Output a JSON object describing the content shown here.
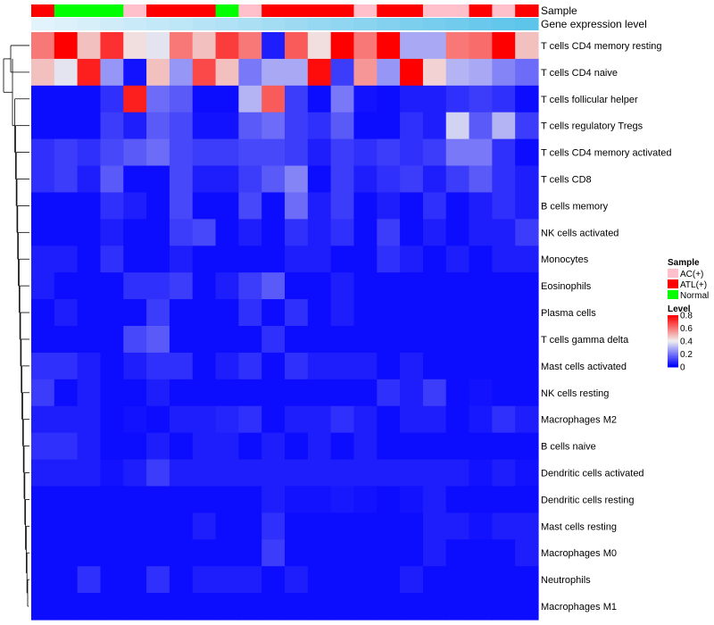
{
  "chart_data": {
    "type": "heatmap",
    "title": "",
    "annotation_rows": [
      {
        "label": "Sample",
        "kind": "categorical",
        "values": [
          "ATL(+)",
          "Normal",
          "Normal",
          "Normal",
          "AC(+)",
          "ATL(+)",
          "ATL(+)",
          "ATL(+)",
          "Normal",
          "AC(+)",
          "ATL(+)",
          "ATL(+)",
          "ATL(+)",
          "ATL(+)",
          "AC(+)",
          "ATL(+)",
          "ATL(+)",
          "AC(+)",
          "AC(+)",
          "ATL(+)",
          "AC(+)",
          "ATL(+)"
        ]
      },
      {
        "label": "Gene expression level",
        "kind": "gradient",
        "colors": [
          "#e3f3fb",
          "#5dc4ea"
        ]
      }
    ],
    "rows": [
      "T cells CD4 memory resting",
      "T cells CD4 naive",
      "T cells follicular helper",
      "T cells regulatory  Tregs",
      "T cells CD4 memory activated",
      "T cells CD8",
      "B cells memory",
      "NK cells activated",
      "Monocytes",
      "Eosinophils",
      "Plasma cells",
      "T cells gamma delta",
      "Mast cells activated",
      "NK cells resting",
      "Macrophages M2",
      "B cells naive",
      "Dendritic cells activated",
      "Dendritic cells resting",
      "Mast cells resting",
      "Macrophages M0",
      "Neutrophils",
      "Macrophages M1"
    ],
    "values": [
      [
        0.6,
        0.8,
        0.48,
        0.72,
        0.43,
        0.38,
        0.6,
        0.48,
        0.7,
        0.6,
        0.05,
        0.65,
        0.43,
        0.8,
        0.6,
        0.8,
        0.28,
        0.28,
        0.6,
        0.62,
        0.8,
        0.48
      ],
      [
        0.48,
        0.38,
        0.75,
        0.25,
        0.03,
        0.48,
        0.25,
        0.68,
        0.48,
        0.2,
        0.28,
        0.28,
        0.78,
        0.1,
        0.55,
        0.25,
        0.8,
        0.45,
        0.3,
        0.28,
        0.22,
        0.18
      ],
      [
        0.02,
        0.02,
        0.02,
        0.08,
        0.75,
        0.18,
        0.15,
        0.02,
        0.02,
        0.3,
        0.65,
        0.1,
        0.02,
        0.2,
        0.03,
        0.02,
        0.05,
        0.05,
        0.08,
        0.1,
        0.08,
        0.02
      ],
      [
        0.02,
        0.02,
        0.02,
        0.1,
        0.05,
        0.15,
        0.12,
        0.03,
        0.03,
        0.15,
        0.18,
        0.1,
        0.08,
        0.15,
        0.02,
        0.02,
        0.08,
        0.05,
        0.35,
        0.15,
        0.3,
        0.1
      ],
      [
        0.08,
        0.1,
        0.08,
        0.12,
        0.15,
        0.18,
        0.12,
        0.1,
        0.1,
        0.12,
        0.12,
        0.1,
        0.05,
        0.1,
        0.08,
        0.1,
        0.08,
        0.1,
        0.2,
        0.2,
        0.08,
        0.02
      ],
      [
        0.08,
        0.1,
        0.05,
        0.15,
        0.02,
        0.02,
        0.12,
        0.05,
        0.05,
        0.1,
        0.15,
        0.22,
        0.02,
        0.1,
        0.05,
        0.08,
        0.1,
        0.05,
        0.1,
        0.15,
        0.08,
        0.05
      ],
      [
        0.02,
        0.02,
        0.02,
        0.08,
        0.05,
        0.02,
        0.12,
        0.02,
        0.02,
        0.12,
        0.02,
        0.18,
        0.05,
        0.1,
        0.02,
        0.05,
        0.02,
        0.08,
        0.02,
        0.05,
        0.08,
        0.05
      ],
      [
        0.02,
        0.02,
        0.02,
        0.05,
        0.02,
        0.02,
        0.1,
        0.12,
        0.02,
        0.05,
        0.02,
        0.08,
        0.05,
        0.08,
        0.02,
        0.1,
        0.02,
        0.05,
        0.02,
        0.05,
        0.05,
        0.1
      ],
      [
        0.05,
        0.05,
        0.02,
        0.08,
        0.02,
        0.02,
        0.05,
        0.02,
        0.02,
        0.02,
        0.02,
        0.05,
        0.05,
        0.02,
        0.02,
        0.08,
        0.05,
        0.02,
        0.05,
        0.02,
        0.05,
        0.05
      ],
      [
        0.05,
        0.02,
        0.02,
        0.02,
        0.08,
        0.08,
        0.1,
        0.02,
        0.05,
        0.1,
        0.15,
        0.02,
        0.02,
        0.05,
        0.02,
        0.02,
        0.02,
        0.02,
        0.02,
        0.02,
        0.02,
        0.02
      ],
      [
        0.02,
        0.05,
        0.02,
        0.02,
        0.02,
        0.1,
        0.02,
        0.02,
        0.02,
        0.08,
        0.02,
        0.08,
        0.02,
        0.05,
        0.02,
        0.02,
        0.02,
        0.02,
        0.02,
        0.02,
        0.02,
        0.02
      ],
      [
        0.02,
        0.02,
        0.02,
        0.02,
        0.12,
        0.15,
        0.02,
        0.02,
        0.02,
        0.02,
        0.08,
        0.02,
        0.02,
        0.02,
        0.02,
        0.02,
        0.02,
        0.02,
        0.02,
        0.02,
        0.02,
        0.02
      ],
      [
        0.08,
        0.08,
        0.05,
        0.02,
        0.05,
        0.08,
        0.08,
        0.02,
        0.05,
        0.08,
        0.02,
        0.08,
        0.05,
        0.05,
        0.05,
        0.02,
        0.05,
        0.02,
        0.02,
        0.02,
        0.02,
        0.02
      ],
      [
        0.1,
        0.02,
        0.05,
        0.02,
        0.02,
        0.05,
        0.02,
        0.02,
        0.02,
        0.02,
        0.02,
        0.02,
        0.02,
        0.02,
        0.02,
        0.08,
        0.05,
        0.1,
        0.02,
        0.03,
        0.02,
        0.02
      ],
      [
        0.05,
        0.05,
        0.05,
        0.02,
        0.03,
        0.02,
        0.05,
        0.05,
        0.06,
        0.08,
        0.02,
        0.05,
        0.05,
        0.08,
        0.05,
        0.02,
        0.05,
        0.05,
        0.02,
        0.04,
        0.08,
        0.05
      ],
      [
        0.08,
        0.08,
        0.05,
        0.02,
        0.02,
        0.05,
        0.02,
        0.05,
        0.05,
        0.02,
        0.05,
        0.02,
        0.05,
        0.02,
        0.05,
        0.02,
        0.02,
        0.02,
        0.02,
        0.02,
        0.02,
        0.02
      ],
      [
        0.05,
        0.05,
        0.05,
        0.03,
        0.05,
        0.1,
        0.05,
        0.05,
        0.05,
        0.05,
        0.05,
        0.05,
        0.05,
        0.05,
        0.05,
        0.05,
        0.05,
        0.05,
        0.05,
        0.03,
        0.05,
        0.03
      ],
      [
        0.02,
        0.02,
        0.02,
        0.02,
        0.02,
        0.02,
        0.02,
        0.02,
        0.02,
        0.02,
        0.05,
        0.03,
        0.03,
        0.04,
        0.03,
        0.02,
        0.03,
        0.05,
        0.02,
        0.02,
        0.02,
        0.02
      ],
      [
        0.02,
        0.02,
        0.02,
        0.02,
        0.02,
        0.02,
        0.02,
        0.05,
        0.02,
        0.02,
        0.08,
        0.02,
        0.02,
        0.02,
        0.02,
        0.02,
        0.02,
        0.05,
        0.05,
        0.03,
        0.05,
        0.05
      ],
      [
        0.02,
        0.02,
        0.02,
        0.02,
        0.02,
        0.02,
        0.02,
        0.02,
        0.02,
        0.02,
        0.1,
        0.02,
        0.02,
        0.02,
        0.02,
        0.02,
        0.02,
        0.05,
        0.02,
        0.02,
        0.02,
        0.05
      ],
      [
        0.02,
        0.02,
        0.08,
        0.02,
        0.02,
        0.08,
        0.02,
        0.05,
        0.05,
        0.05,
        0.02,
        0.05,
        0.02,
        0.02,
        0.02,
        0.02,
        0.05,
        0.02,
        0.02,
        0.02,
        0.02,
        0.02
      ],
      [
        0.02,
        0.02,
        0.02,
        0.02,
        0.02,
        0.02,
        0.02,
        0.02,
        0.02,
        0.02,
        0.02,
        0.02,
        0.02,
        0.02,
        0.02,
        0.02,
        0.02,
        0.02,
        0.02,
        0.02,
        0.02,
        0.02
      ]
    ],
    "color_scale": {
      "min": 0,
      "mid": 0.4,
      "max": 0.8,
      "low_color": "#0000ff",
      "mid_color": "#f0f0f0",
      "high_color": "#ff0000"
    },
    "legends": [
      {
        "title": "Sample",
        "items": [
          {
            "label": "AC(+)",
            "color": "#ffc0cb"
          },
          {
            "label": "ATL(+)",
            "color": "#ff0000"
          },
          {
            "label": "Normal",
            "color": "#00ff00"
          }
        ]
      },
      {
        "title": "Level",
        "ticks": [
          "0.8",
          "0.6",
          "0.4",
          "0.2",
          "0"
        ]
      }
    ],
    "dendrogram": {
      "side": "left",
      "clusters": [
        [
          "T cells CD4 memory resting",
          "T cells CD4 naive"
        ],
        [
          "T cells follicular helper",
          "T cells regulatory  Tregs",
          "T cells CD4 memory activated",
          "T cells CD8",
          "B cells memory",
          "NK cells activated",
          "Monocytes",
          "Eosinophils",
          "Plasma cells",
          "T cells gamma delta",
          "Mast cells activated",
          "NK cells resting",
          "Macrophages M2",
          "B cells naive",
          "Dendritic cells activated",
          "Dendritic cells resting",
          "Mast cells resting",
          "Macrophages M0",
          "Neutrophils",
          "Macrophages M1"
        ]
      ]
    }
  }
}
